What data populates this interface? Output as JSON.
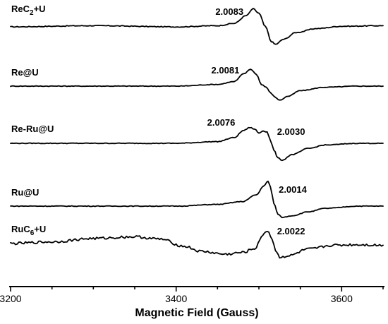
{
  "chart_data": {
    "type": "line",
    "xlabel": "Magnetic Field (Gauss)",
    "ylabel": "",
    "xlim": [
      3200,
      3650
    ],
    "x_ticks": [
      3200,
      3400,
      3600
    ],
    "grid": false,
    "series": [
      {
        "name": "ReC2+U",
        "label_main": "ReC",
        "label_sub": "2",
        "label_end": "+U",
        "g_values": [
          {
            "g": "2.0083",
            "field": 3495
          }
        ],
        "points": [
          [
            3200,
            0
          ],
          [
            3300,
            0.2
          ],
          [
            3400,
            0
          ],
          [
            3450,
            0.2
          ],
          [
            3470,
            0.6
          ],
          [
            3485,
            2.0
          ],
          [
            3493,
            3.2
          ],
          [
            3500,
            2.4
          ],
          [
            3508,
            0
          ],
          [
            3515,
            -2.6
          ],
          [
            3520,
            -3.1
          ],
          [
            3530,
            -2.2
          ],
          [
            3545,
            -1.0
          ],
          [
            3570,
            -0.3
          ],
          [
            3600,
            0.1
          ],
          [
            3650,
            0.2
          ]
        ]
      },
      {
        "name": "Re@U",
        "label_main": "Re@U",
        "label_sub": "",
        "label_end": "",
        "g_values": [
          {
            "g": "2.0081",
            "field": 3490
          }
        ],
        "points": [
          [
            3200,
            0
          ],
          [
            3300,
            0
          ],
          [
            3400,
            0
          ],
          [
            3450,
            0.3
          ],
          [
            3470,
            0.8
          ],
          [
            3482,
            2.2
          ],
          [
            3490,
            3.0
          ],
          [
            3497,
            2.1
          ],
          [
            3503,
            0.3
          ],
          [
            3509,
            -0.2
          ],
          [
            3514,
            -1.2
          ],
          [
            3520,
            -2.0
          ],
          [
            3525,
            -2.5
          ],
          [
            3535,
            -1.8
          ],
          [
            3550,
            -0.8
          ],
          [
            3580,
            -0.2
          ],
          [
            3620,
            0
          ],
          [
            3650,
            0
          ]
        ]
      },
      {
        "name": "Re-Ru@U",
        "label_main": "Re-Ru@U",
        "label_sub": "",
        "label_end": "",
        "g_values": [
          {
            "g": "2.0076",
            "field": 3485
          },
          {
            "g": "2.0030",
            "field": 3510
          }
        ],
        "points": [
          [
            3200,
            0
          ],
          [
            3300,
            0
          ],
          [
            3400,
            0
          ],
          [
            3450,
            0.3
          ],
          [
            3470,
            1.0
          ],
          [
            3482,
            2.3
          ],
          [
            3489,
            2.8
          ],
          [
            3495,
            2.5
          ],
          [
            3500,
            1.8
          ],
          [
            3505,
            2.2
          ],
          [
            3510,
            2.0
          ],
          [
            3514,
            0.5
          ],
          [
            3518,
            -1.2
          ],
          [
            3523,
            -2.6
          ],
          [
            3528,
            -3.0
          ],
          [
            3540,
            -2.0
          ],
          [
            3560,
            -0.9
          ],
          [
            3580,
            -0.3
          ],
          [
            3620,
            0
          ],
          [
            3650,
            0
          ]
        ]
      },
      {
        "name": "Ru@U",
        "label_main": "Ru@U",
        "label_sub": "",
        "label_end": "",
        "g_values": [
          {
            "g": "2.0014",
            "field": 3512
          }
        ],
        "points": [
          [
            3200,
            0
          ],
          [
            3300,
            0
          ],
          [
            3400,
            0
          ],
          [
            3450,
            0.3
          ],
          [
            3480,
            0.8
          ],
          [
            3497,
            2.0
          ],
          [
            3506,
            3.6
          ],
          [
            3511,
            4.4
          ],
          [
            3514,
            3.4
          ],
          [
            3518,
            0.5
          ],
          [
            3523,
            -1.4
          ],
          [
            3528,
            -2.0
          ],
          [
            3540,
            -1.7
          ],
          [
            3560,
            -1.0
          ],
          [
            3580,
            -0.4
          ],
          [
            3620,
            0
          ],
          [
            3650,
            0
          ]
        ]
      },
      {
        "name": "RuC6+U",
        "label_main": "RuC",
        "label_sub": "6",
        "label_end": "+U",
        "g_values": [
          {
            "g": "2.0022",
            "field": 3510
          }
        ],
        "points": [
          [
            3200,
            0
          ],
          [
            3250,
            0.3
          ],
          [
            3300,
            0.9
          ],
          [
            3350,
            1.2
          ],
          [
            3380,
            0.8
          ],
          [
            3410,
            -0.5
          ],
          [
            3430,
            -1.4
          ],
          [
            3460,
            -1.9
          ],
          [
            3480,
            -1.6
          ],
          [
            3495,
            -0.9
          ],
          [
            3503,
            1.0
          ],
          [
            3508,
            2.2
          ],
          [
            3512,
            2.0
          ],
          [
            3516,
            0.8
          ],
          [
            3520,
            -1.2
          ],
          [
            3525,
            -2.4
          ],
          [
            3535,
            -2.2
          ],
          [
            3560,
            -1.0
          ],
          [
            3590,
            -0.3
          ],
          [
            3620,
            -0.2
          ],
          [
            3650,
            -0.3
          ]
        ]
      }
    ]
  }
}
